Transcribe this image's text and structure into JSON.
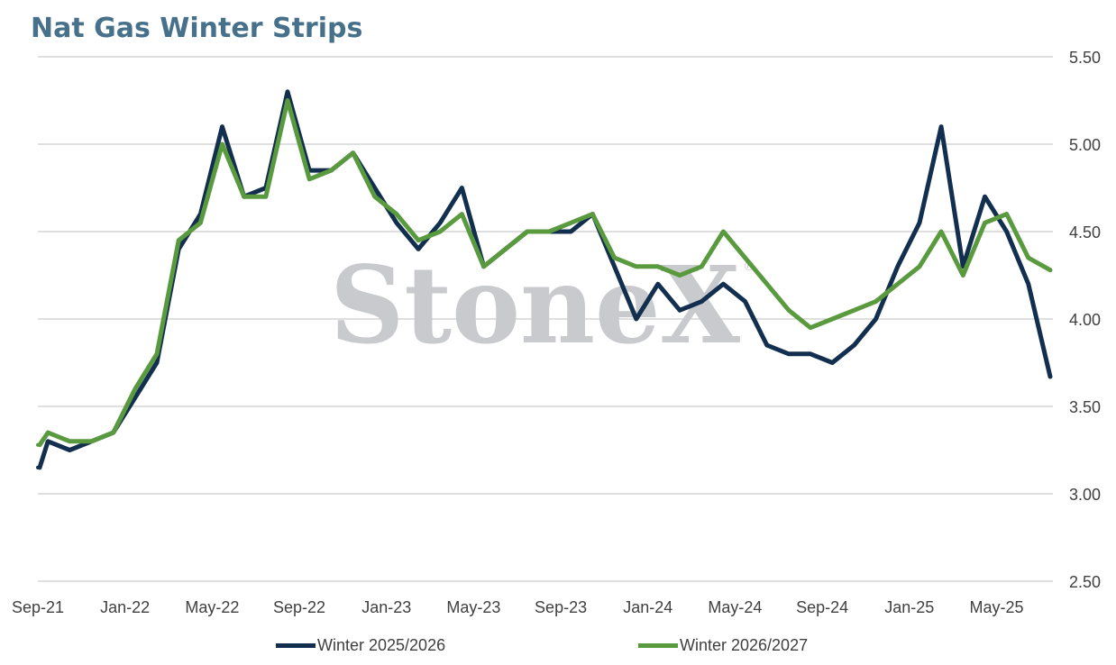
{
  "title": "Nat Gas Winter Strips",
  "watermark": "StoneX",
  "watermark_mark": "®",
  "colors": {
    "series1": "#132f4f",
    "series2": "#5a9a3e",
    "grid": "#cccccc",
    "title": "#47708a",
    "watermark": "#c9cacd"
  },
  "legend": [
    {
      "label": "Winter 2025/2026",
      "color": "#132f4f"
    },
    {
      "label": "Winter 2026/2027",
      "color": "#5a9a3e"
    }
  ],
  "chart_data": {
    "type": "line",
    "title": "Nat Gas Winter Strips",
    "xlabel": "",
    "ylabel": "",
    "x_range": [
      "Sep-21",
      "Aug-25"
    ],
    "ylim": [
      2.5,
      5.5
    ],
    "yticks": [
      "2.50",
      "3.00",
      "3.50",
      "4.00",
      "4.50",
      "5.00",
      "5.50"
    ],
    "xticks": [
      "Sep-21",
      "Jan-22",
      "May-22",
      "Sep-22",
      "Jan-23",
      "May-23",
      "Sep-23",
      "Jan-24",
      "May-24",
      "Sep-24",
      "Jan-25",
      "May-25"
    ],
    "y_axis_position": "right",
    "grid": true,
    "legend_position": "bottom",
    "series": [
      {
        "name": "Winter 2025/2026",
        "x": [
          "Sep-21",
          "Oct-21",
          "Nov-21",
          "Dec-21",
          "Jan-22",
          "Feb-22",
          "Mar-22",
          "Apr-22",
          "May-22",
          "Jun-22",
          "Jul-22",
          "Aug-22",
          "Sep-22",
          "Oct-22",
          "Nov-22",
          "Dec-22",
          "Jan-23",
          "Feb-23",
          "Mar-23",
          "Apr-23",
          "May-23",
          "Jun-23",
          "Jul-23",
          "Aug-23",
          "Sep-23",
          "Oct-23",
          "Nov-23",
          "Dec-23",
          "Jan-24",
          "Feb-24",
          "Mar-24",
          "Apr-24",
          "May-24",
          "Jun-24",
          "Jul-24",
          "Aug-24",
          "Sep-24",
          "Oct-24",
          "Nov-24",
          "Dec-24",
          "Jan-25",
          "Feb-25",
          "Mar-25",
          "Apr-25",
          "May-25",
          "Jun-25",
          "Jul-25",
          "Aug-25"
        ],
        "values": [
          3.15,
          3.3,
          3.25,
          3.3,
          3.35,
          3.55,
          3.75,
          4.4,
          4.6,
          5.1,
          4.7,
          4.75,
          5.3,
          4.85,
          4.85,
          4.95,
          4.75,
          4.55,
          4.4,
          4.55,
          4.75,
          4.3,
          4.4,
          4.5,
          4.5,
          4.5,
          4.6,
          4.3,
          4.0,
          4.2,
          4.05,
          4.1,
          4.2,
          4.1,
          3.85,
          3.8,
          3.8,
          3.75,
          3.85,
          4.0,
          4.3,
          4.55,
          5.1,
          4.3,
          4.7,
          4.5,
          4.2,
          3.67
        ]
      },
      {
        "name": "Winter 2026/2027",
        "x": [
          "Sep-21",
          "Oct-21",
          "Nov-21",
          "Dec-21",
          "Jan-22",
          "Feb-22",
          "Mar-22",
          "Apr-22",
          "May-22",
          "Jun-22",
          "Jul-22",
          "Aug-22",
          "Sep-22",
          "Oct-22",
          "Nov-22",
          "Dec-22",
          "Jan-23",
          "Feb-23",
          "Mar-23",
          "Apr-23",
          "May-23",
          "Jun-23",
          "Jul-23",
          "Aug-23",
          "Sep-23",
          "Oct-23",
          "Nov-23",
          "Dec-23",
          "Jan-24",
          "Feb-24",
          "Mar-24",
          "Apr-24",
          "May-24",
          "Jun-24",
          "Jul-24",
          "Aug-24",
          "Sep-24",
          "Oct-24",
          "Nov-24",
          "Dec-24",
          "Jan-25",
          "Feb-25",
          "Mar-25",
          "Apr-25",
          "May-25",
          "Jun-25",
          "Jul-25",
          "Aug-25"
        ],
        "values": [
          3.28,
          3.35,
          3.3,
          3.3,
          3.35,
          3.6,
          3.8,
          4.45,
          4.55,
          5.0,
          4.7,
          4.7,
          5.25,
          4.8,
          4.85,
          4.95,
          4.7,
          4.6,
          4.45,
          4.5,
          4.6,
          4.3,
          4.4,
          4.5,
          4.5,
          4.55,
          4.6,
          4.35,
          4.3,
          4.3,
          4.25,
          4.3,
          4.5,
          4.35,
          4.2,
          4.05,
          3.95,
          4.0,
          4.05,
          4.1,
          4.2,
          4.3,
          4.5,
          4.25,
          4.55,
          4.6,
          4.35,
          4.28
        ]
      }
    ]
  }
}
